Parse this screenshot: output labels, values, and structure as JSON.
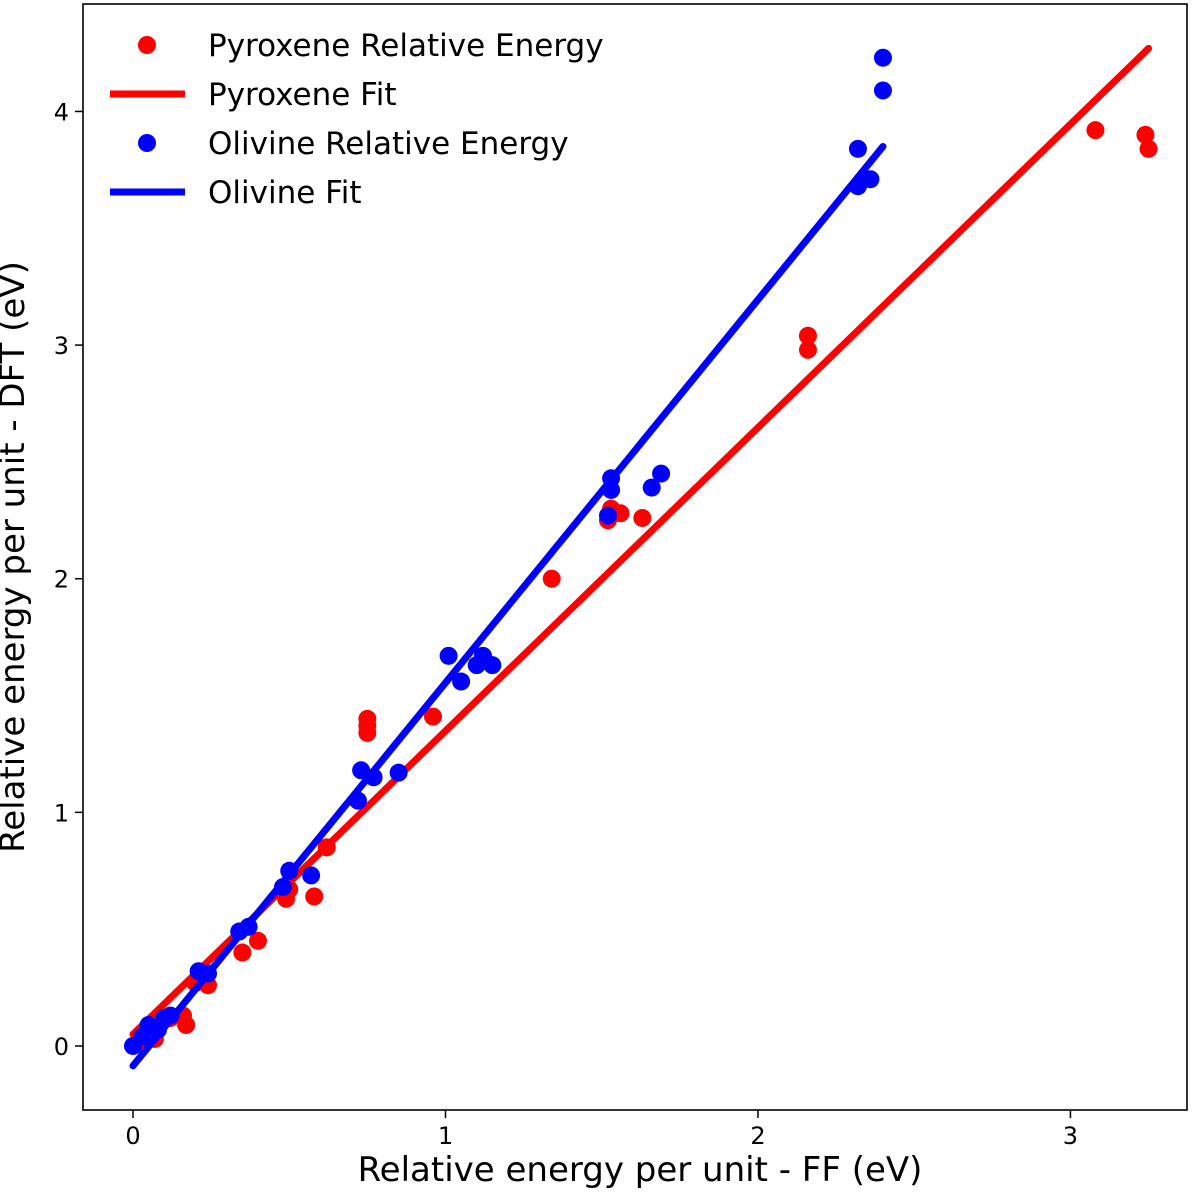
{
  "chart_data": {
    "type": "scatter",
    "title": "",
    "xlabel": "Relative energy per unit - FF (eV)",
    "ylabel": "Relative energy per unit - DFT (eV)",
    "xlim": [
      -0.16,
      3.373
    ],
    "ylim": [
      -0.274,
      4.46
    ],
    "xticks": [
      0,
      1,
      2,
      3
    ],
    "yticks": [
      0,
      1,
      2,
      3,
      4
    ],
    "xtick_labels": [
      "0",
      "1",
      "2",
      "3"
    ],
    "ytick_labels": [
      "0",
      "1",
      "2",
      "3",
      "4"
    ],
    "grid": false,
    "legend_position": "top-left",
    "legend": [
      "Pyroxene Relative Energy",
      "Pyroxene Fit",
      "Olivine Relative Energy",
      "Olivine Fit"
    ],
    "series": [
      {
        "name": "Pyroxene Relative Energy",
        "kind": "scatter",
        "color": "#ff0000",
        "points": [
          [
            0.02,
            0.01
          ],
          [
            0.07,
            0.03
          ],
          [
            0.12,
            0.12
          ],
          [
            0.16,
            0.13
          ],
          [
            0.17,
            0.09
          ],
          [
            0.2,
            0.27
          ],
          [
            0.24,
            0.26
          ],
          [
            0.35,
            0.4
          ],
          [
            0.4,
            0.45
          ],
          [
            0.49,
            0.63
          ],
          [
            0.5,
            0.67
          ],
          [
            0.58,
            0.64
          ],
          [
            0.62,
            0.85
          ],
          [
            0.75,
            1.34
          ],
          [
            0.75,
            1.37
          ],
          [
            0.75,
            1.4
          ],
          [
            0.96,
            1.41
          ],
          [
            1.34,
            2.0
          ],
          [
            1.52,
            2.25
          ],
          [
            1.53,
            2.3
          ],
          [
            1.56,
            2.28
          ],
          [
            1.63,
            2.26
          ],
          [
            2.16,
            2.98
          ],
          [
            2.16,
            3.04
          ],
          [
            3.08,
            3.92
          ],
          [
            3.24,
            3.9
          ],
          [
            3.25,
            3.84
          ]
        ]
      },
      {
        "name": "Pyroxene Fit",
        "kind": "line",
        "color": "#ff0000",
        "points": [
          [
            0,
            0.05
          ],
          [
            3.25,
            4.27
          ]
        ]
      },
      {
        "name": "Olivine Relative Energy",
        "kind": "scatter",
        "color": "#0000ff",
        "points": [
          [
            0,
            0
          ],
          [
            0.03,
            0.04
          ],
          [
            0.05,
            0.09
          ],
          [
            0.08,
            0.07
          ],
          [
            0.1,
            0.12
          ],
          [
            0.12,
            0.13
          ],
          [
            0.21,
            0.32
          ],
          [
            0.24,
            0.31
          ],
          [
            0.34,
            0.49
          ],
          [
            0.37,
            0.51
          ],
          [
            0.48,
            0.68
          ],
          [
            0.5,
            0.75
          ],
          [
            0.57,
            0.73
          ],
          [
            0.72,
            1.05
          ],
          [
            0.73,
            1.18
          ],
          [
            0.77,
            1.15
          ],
          [
            0.85,
            1.17
          ],
          [
            1.01,
            1.67
          ],
          [
            1.05,
            1.56
          ],
          [
            1.1,
            1.63
          ],
          [
            1.12,
            1.67
          ],
          [
            1.15,
            1.63
          ],
          [
            1.52,
            2.27
          ],
          [
            1.53,
            2.38
          ],
          [
            1.53,
            2.43
          ],
          [
            1.66,
            2.39
          ],
          [
            1.69,
            2.45
          ],
          [
            2.32,
            3.84
          ],
          [
            2.32,
            3.68
          ],
          [
            2.36,
            3.71
          ],
          [
            2.4,
            4.09
          ],
          [
            2.4,
            4.23
          ]
        ]
      },
      {
        "name": "Olivine Fit",
        "kind": "line",
        "color": "#0000ff",
        "points": [
          [
            0,
            -0.085
          ],
          [
            2.4,
            3.85
          ]
        ]
      }
    ]
  }
}
